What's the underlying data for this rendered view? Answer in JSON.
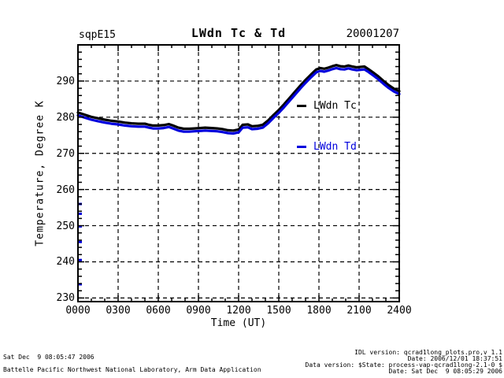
{
  "header": {
    "site": "sqpE15",
    "title": "LWdn Tc & Td",
    "date": "20001207"
  },
  "footer": {
    "left_line1": "Sat Dec  9 08:05:47 2006",
    "left_line2": "Battelle Pacific Northwest National Laboratory, Arm Data Application",
    "right_line1": "IDL version: qcrad1long_plots.pro,v 1.1",
    "right_line2": "Date: 2006/12/01 18:37:51",
    "right_line3": "Data version: $State: process-vap-qcrad1long-2.1-0 $",
    "right_line4": "Date: Sat Dec  9 08:05:29 2006"
  },
  "colors": {
    "tc": "#000000",
    "td": "#0000dd",
    "axis": "#000000",
    "background": "#ffffff"
  },
  "chart_data": {
    "type": "line",
    "title": "LWdn Tc & Td",
    "xlabel": "Time (UT)",
    "ylabel": "Temperature, Degree K",
    "xlim": [
      0,
      24
    ],
    "ylim": [
      230,
      300
    ],
    "grid": "dashed",
    "legend_position": "inside-upper-right",
    "x_tick_labels": [
      "0000",
      "0300",
      "0600",
      "0900",
      "1200",
      "1500",
      "1800",
      "2100",
      "2400"
    ],
    "x_tick_hours": [
      0,
      3,
      6,
      9,
      12,
      15,
      18,
      21,
      24
    ],
    "y_tick_values": [
      230,
      240,
      250,
      260,
      270,
      280,
      290
    ],
    "x_minor_step_hours": 1,
    "y_minor_step": 2,
    "x": [
      0,
      0.5,
      1,
      1.5,
      2,
      2.5,
      3,
      3.5,
      4,
      4.5,
      5,
      5.3,
      5.6,
      6,
      6.4,
      6.8,
      7.1,
      7.5,
      7.9,
      8.3,
      8.7,
      9.1,
      9.5,
      10,
      10.4,
      10.8,
      11.2,
      11.6,
      12,
      12.3,
      12.7,
      13,
      13.4,
      13.8,
      14.2,
      14.6,
      15,
      15.4,
      15.8,
      16.2,
      16.6,
      17,
      17.4,
      17.8,
      18.1,
      18.4,
      18.7,
      19,
      19.3,
      19.6,
      19.9,
      20.2,
      20.5,
      20.8,
      21.1,
      21.4,
      21.7,
      22,
      22.4,
      22.8,
      23.2,
      23.6,
      24
    ],
    "series": [
      {
        "name": "LWdn Tc",
        "color": "#000000",
        "values": [
          281.3,
          280.7,
          280.1,
          279.7,
          279.3,
          279.0,
          278.8,
          278.5,
          278.3,
          278.2,
          278.2,
          277.9,
          277.7,
          277.7,
          277.8,
          278.1,
          277.7,
          277.1,
          276.8,
          276.8,
          276.9,
          277.0,
          277.1,
          277.0,
          276.9,
          276.7,
          276.4,
          276.3,
          276.6,
          277.9,
          278.0,
          277.5,
          277.6,
          277.9,
          279.1,
          280.6,
          282.0,
          283.6,
          285.3,
          287.0,
          288.7,
          290.3,
          291.8,
          293.2,
          293.6,
          293.4,
          293.7,
          294.1,
          294.4,
          294.1,
          294.0,
          294.3,
          294.0,
          293.8,
          293.9,
          294.0,
          293.3,
          292.5,
          291.4,
          290.1,
          288.9,
          287.9,
          287.2
        ]
      },
      {
        "name": "LWdn Td",
        "color": "#0000dd",
        "values": [
          280.5,
          279.9,
          279.3,
          278.9,
          278.5,
          278.2,
          278.0,
          277.7,
          277.5,
          277.4,
          277.4,
          277.1,
          276.9,
          276.9,
          277.0,
          277.3,
          276.9,
          276.3,
          276.0,
          276.0,
          276.1,
          276.2,
          276.3,
          276.2,
          276.1,
          275.9,
          275.6,
          275.5,
          275.8,
          277.1,
          277.2,
          276.7,
          276.8,
          277.1,
          278.3,
          279.8,
          281.2,
          282.8,
          284.5,
          286.2,
          287.9,
          289.5,
          291.0,
          292.4,
          292.8,
          292.6,
          292.9,
          293.3,
          293.6,
          293.3,
          293.2,
          293.5,
          293.2,
          293.0,
          293.1,
          293.2,
          292.5,
          291.7,
          290.6,
          289.3,
          288.1,
          287.1,
          286.4
        ]
      }
    ],
    "outliers": {
      "series": "LWdn Td",
      "x": 0,
      "values": [
        256.0,
        253.3,
        249.8,
        245.5,
        240.5,
        233.8
      ],
      "note": "detached blue marks on left axis edge"
    }
  }
}
